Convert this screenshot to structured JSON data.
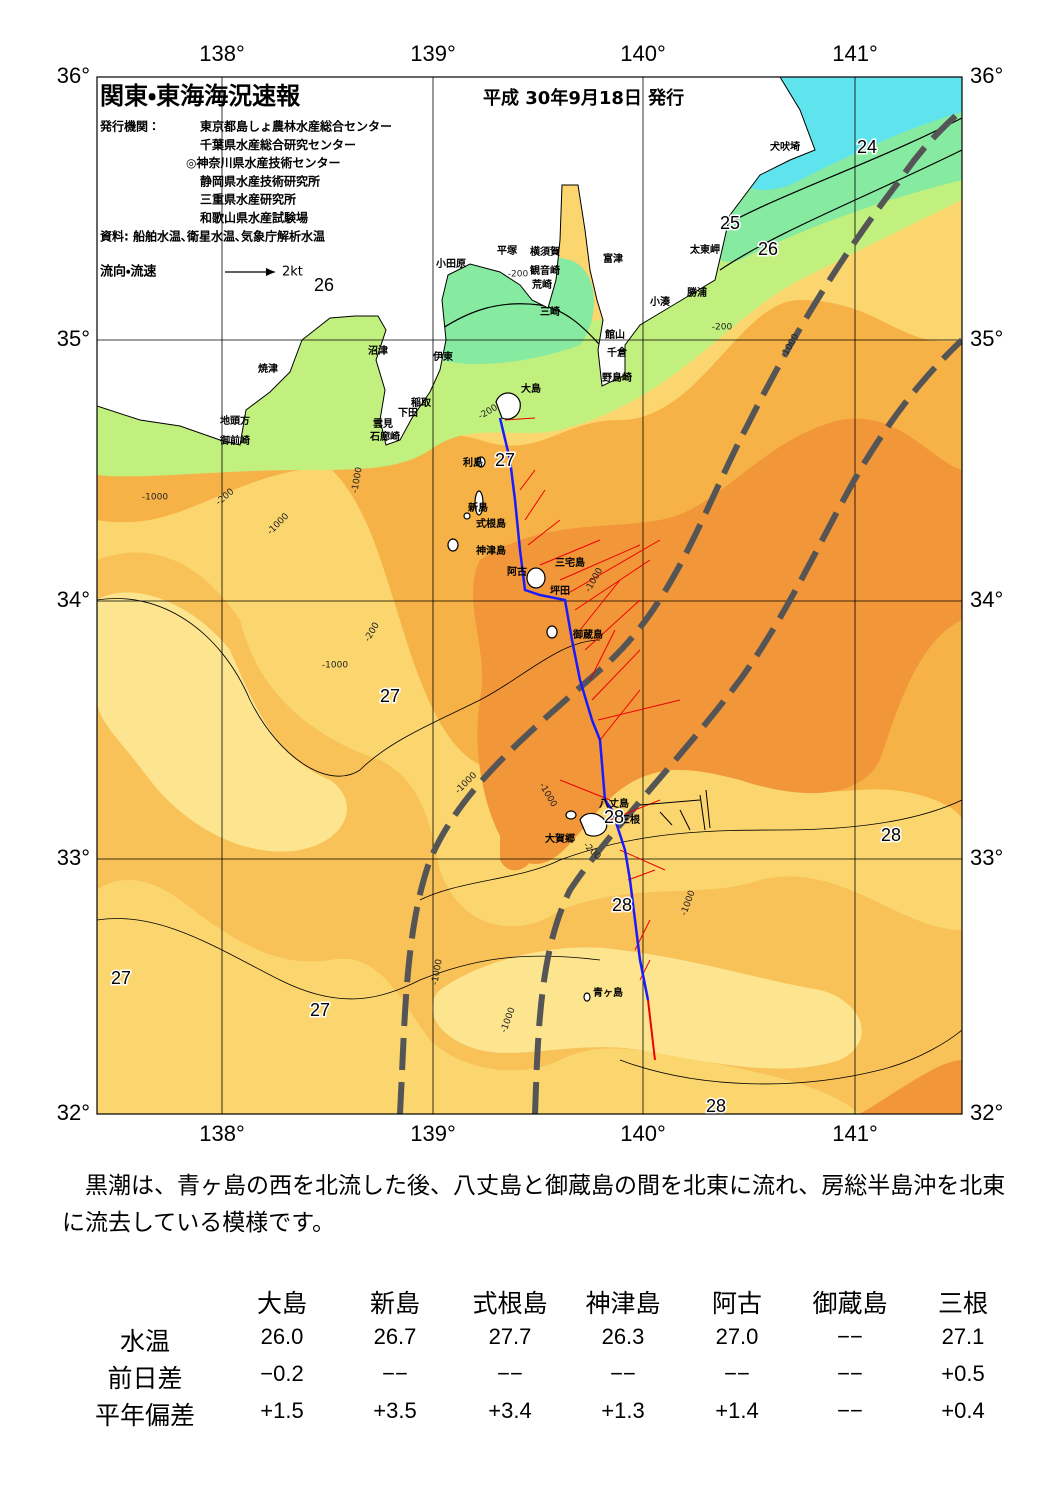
{
  "header": {
    "title": "関東・東海海況速報",
    "date": "平成 30年9月18日 発行",
    "publisher_label": "発行機関：",
    "publishers": [
      "東京都島しょ農林水産総合センター",
      "千葉県水産総合研究センター",
      "◎神奈川県水産技術センター",
      "静岡県水産技術研究所",
      "三重県水産研究所",
      "和歌山県水産試験場"
    ],
    "source": "資料: 船舶水温､衛星水温､気象庁解析水温",
    "legend_label": "流向・流速",
    "legend_speed": "2kt"
  },
  "map": {
    "longitudes": [
      "138°",
      "139°",
      "140°",
      "141°"
    ],
    "latitudes": [
      "36°",
      "35°",
      "34°",
      "33°",
      "32°"
    ],
    "places": [
      "犬吠埼",
      "太東岬",
      "勝浦",
      "小湊",
      "富津",
      "横須賀",
      "観音崎",
      "平塚",
      "荒崎",
      "三崎",
      "館山",
      "千倉",
      "野島崎",
      "小田原",
      "沼津",
      "伊東",
      "焼津",
      "稲取",
      "下田",
      "雲見",
      "石廊崎",
      "地頭方",
      "御前崎",
      "大島",
      "利島",
      "新島",
      "式根島",
      "神津島",
      "三宅島",
      "阿古",
      "坪田",
      "御蔵島",
      "八丈島",
      "三根",
      "大賀郷",
      "青ヶ島"
    ],
    "isotherm_labels": [
      "24",
      "25",
      "26",
      "26",
      "27",
      "27",
      "28",
      "28",
      "28",
      "27",
      "27",
      "28"
    ],
    "depth_labels": [
      "-200",
      "-200",
      "-1000",
      "-200",
      "-1000",
      "-200",
      "-1000",
      "-1000",
      "-200",
      "-1000",
      "-1000",
      "-1000",
      "-200",
      "-1000",
      "-1000",
      "-1000",
      "-1000"
    ]
  },
  "summary": "黒潮は、青ヶ島の西を北流した後、八丈島と御蔵島の間を北東に流れ、房総半島沖を北東に流去している模様です。",
  "table": {
    "columns": [
      "大島",
      "新島",
      "式根島",
      "神津島",
      "阿古",
      "御蔵島",
      "三根"
    ],
    "rows": [
      {
        "label": "水温",
        "cells": [
          "26.0",
          "26.7",
          "27.7",
          "26.3",
          "27.0",
          "−−",
          "27.1"
        ]
      },
      {
        "label": "前日差",
        "cells": [
          "−0.2",
          "−−",
          "−−",
          "−−",
          "−−",
          "−−",
          "+0.5"
        ]
      },
      {
        "label": "平年偏差",
        "cells": [
          "+1.5",
          "+3.5",
          "+3.4",
          "+1.3",
          "+1.4",
          "−−",
          "+0.4"
        ]
      }
    ]
  }
}
